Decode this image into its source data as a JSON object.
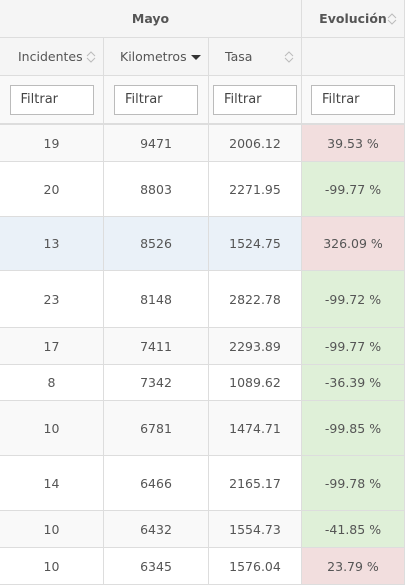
{
  "table": {
    "group_headers": [
      "Mayo",
      "Evolución"
    ],
    "columns": [
      "Incidentes",
      "Kilometros",
      "Tasa",
      null
    ],
    "filter_placeholder": "Filtrar",
    "rows": [
      [
        "19",
        "9471",
        "2006.12",
        "39.53 %"
      ],
      [
        "20",
        "8803",
        "2271.95",
        "-99.77 %"
      ],
      [
        "13",
        "8526",
        "1524.75",
        "326.09 %"
      ],
      [
        "23",
        "8148",
        "2822.78",
        "-99.72 %"
      ],
      [
        "17",
        "7411",
        "2293.89",
        "-99.77 %"
      ],
      [
        "8",
        "7342",
        "1089.62",
        "-36.39 %"
      ],
      [
        "10",
        "6781",
        "1474.71",
        "-99.85 %"
      ],
      [
        "14",
        "6466",
        "2165.17",
        "-99.78 %"
      ],
      [
        "10",
        "6432",
        "1554.73",
        "-41.85 %"
      ],
      [
        "10",
        "6345",
        "1576.04",
        "23.79 %"
      ]
    ],
    "evolution_colors": [
      "#f2dede",
      "#dff0d8",
      "#f2dede",
      "#dff0d8",
      "#dff0d8",
      "#dff0d8",
      "#dff0d8",
      "#dff0d8",
      "#dff0d8",
      "#f2dede"
    ],
    "sorted_column": 1
  }
}
